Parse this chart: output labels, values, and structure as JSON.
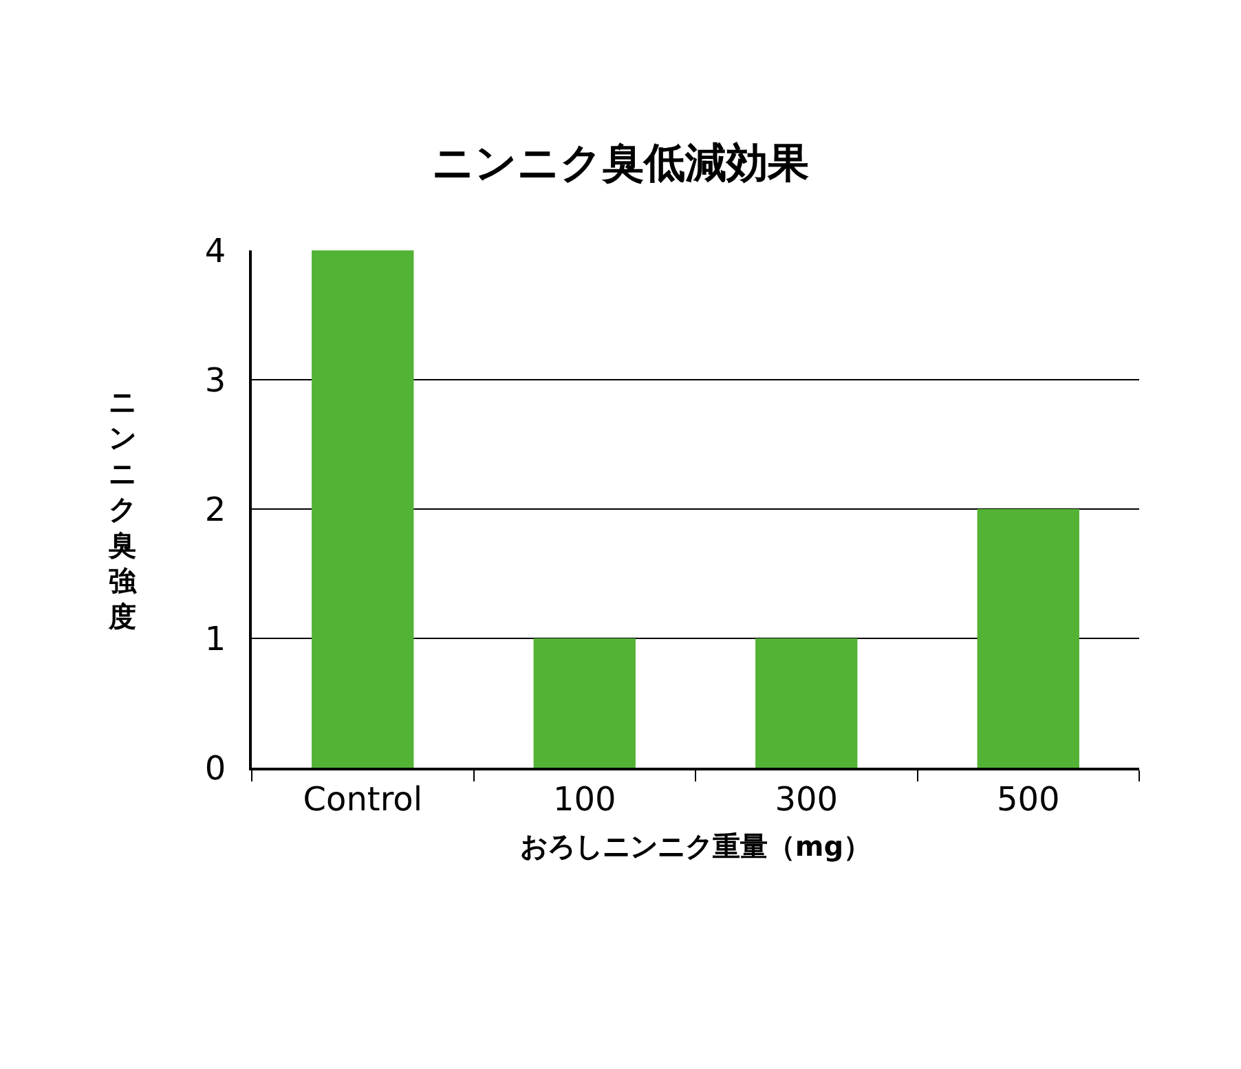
{
  "chart_data": {
    "type": "bar",
    "title": "ニンニク臭低減効果",
    "xlabel": "おろしニンニク重量（mg）",
    "ylabel": "ニンニク臭強度",
    "categories": [
      "Control",
      "100",
      "300",
      "500"
    ],
    "values": [
      4,
      1,
      1,
      2
    ],
    "color": "#52b335",
    "ylim": [
      0,
      4
    ],
    "yticks": [
      0,
      1,
      2,
      3,
      4
    ],
    "grid": "y",
    "legend": false
  }
}
